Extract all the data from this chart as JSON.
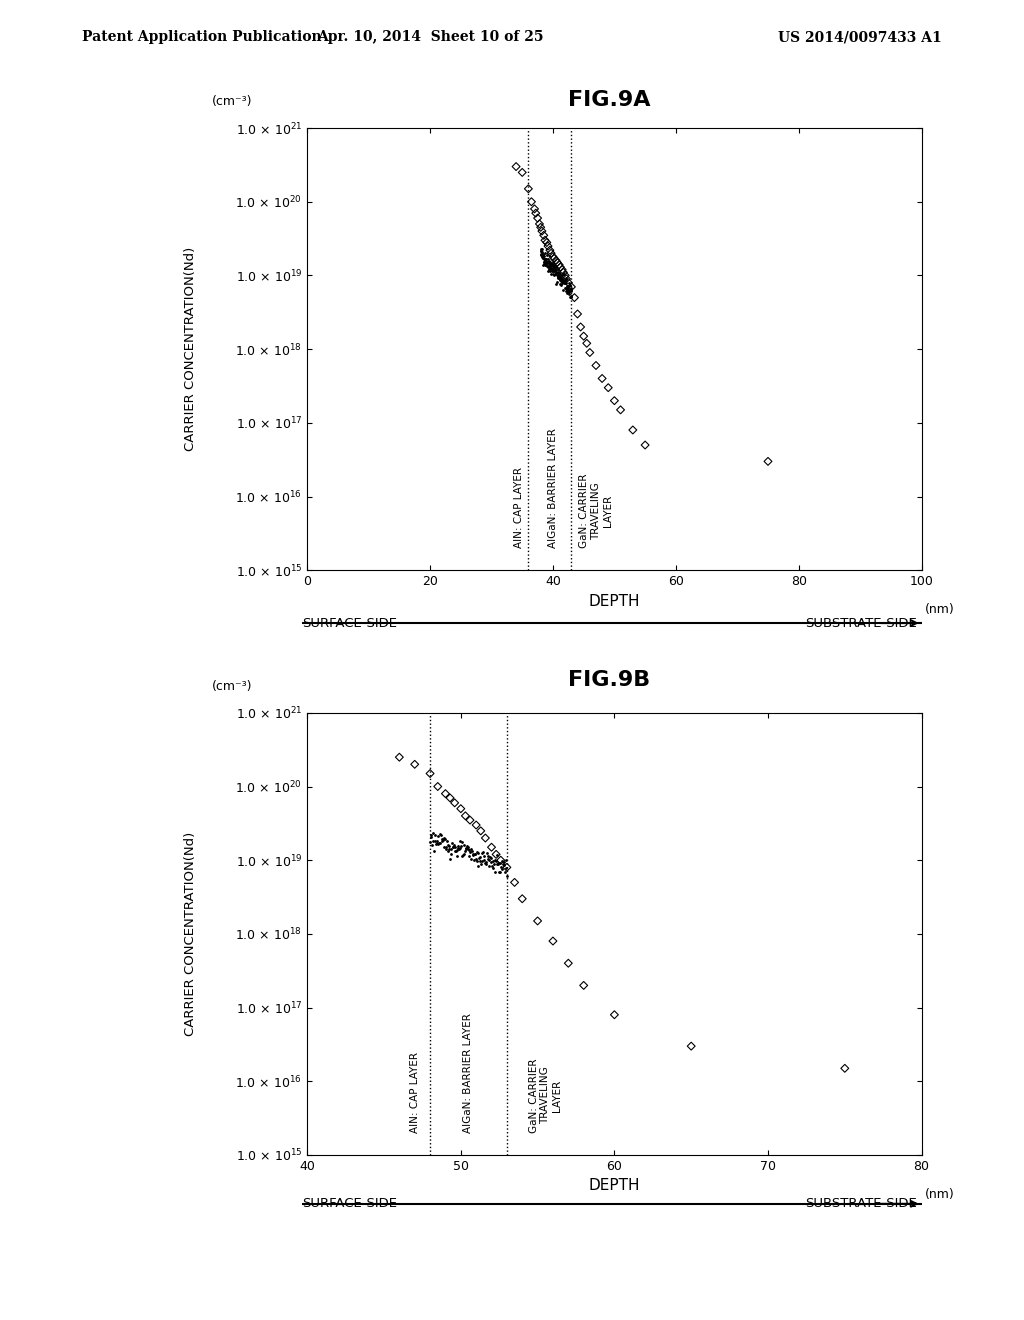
{
  "fig9a_title": "FIG.9A",
  "fig9b_title": "FIG.9B",
  "header_left": "Patent Application Publication",
  "header_mid": "Apr. 10, 2014  Sheet 10 of 25",
  "header_right": "US 2014/0097433 A1",
  "ylabel": "CARRIER CONCENTRATION(Nd)",
  "xlabel": "DEPTH",
  "yunit": "(cm⁻³)",
  "xunit": "(nm)",
  "fig9a": {
    "xlim": [
      0,
      100
    ],
    "xticks": [
      0,
      20,
      40,
      60,
      80,
      100
    ],
    "yticks_exp": [
      15,
      16,
      17,
      18,
      19,
      20,
      21
    ],
    "vline1_x": 36,
    "vline2_x": 43,
    "label1_text": "AlN: CAP LAYER",
    "label2_text": "AlGaN: BARRIER LAYER",
    "label3_text": "GaN: CARRIER\nTRAVELING\nLAYER",
    "scatter_x": [
      34,
      35,
      36,
      36.5,
      37,
      37.2,
      37.5,
      37.8,
      38,
      38.2,
      38.5,
      38.7,
      39,
      39.2,
      39.5,
      39.7,
      40,
      40.2,
      40.5,
      40.7,
      41,
      41.2,
      41.5,
      41.7,
      42,
      42.2,
      42.5,
      43,
      43.5,
      44,
      44.5,
      45,
      45.5,
      46,
      47,
      48,
      49,
      50,
      51,
      53,
      55,
      75
    ],
    "scatter_y": [
      3e+20,
      2.5e+20,
      1.5e+20,
      1e+20,
      8e+19,
      7e+19,
      6e+19,
      5e+19,
      4.5e+19,
      4e+19,
      3.5e+19,
      3e+19,
      2.8e+19,
      2.5e+19,
      2.2e+19,
      2e+19,
      1.8e+19,
      1.7e+19,
      1.6e+19,
      1.5e+19,
      1.4e+19,
      1.3e+19,
      1.2e+19,
      1.1e+19,
      1e+19,
      9e+18,
      8e+18,
      7e+18,
      5e+18,
      3e+18,
      2e+18,
      1.5e+18,
      1.2e+18,
      9e+17,
      6e+17,
      4e+17,
      3e+17,
      2e+17,
      1.5e+17,
      8e+16,
      5e+16,
      3e+16
    ],
    "dense_x_start": 38.0,
    "dense_x_end": 43.0,
    "surface_side_label": "SURFACE-SIDE",
    "substrate_side_label": "SUBSTRATE-SIDE"
  },
  "fig9b": {
    "xlim": [
      40,
      80
    ],
    "xticks": [
      40,
      50,
      60,
      70,
      80
    ],
    "yticks_exp": [
      15,
      16,
      17,
      18,
      19,
      20,
      21
    ],
    "vline1_x": 48,
    "vline2_x": 53,
    "label1_text": "AlN: CAP LAYER",
    "label2_text": "AlGaN: BARRIER LAYER",
    "label3_text": "GaN: CARRIER\nTRAVELING\nLAYER",
    "scatter_x": [
      46,
      47,
      48,
      48.5,
      49,
      49.3,
      49.6,
      50,
      50.3,
      50.6,
      51,
      51.3,
      51.6,
      52,
      52.3,
      52.6,
      53,
      53.5,
      54,
      55,
      56,
      57,
      58,
      60,
      65,
      75
    ],
    "scatter_y": [
      2.5e+20,
      2e+20,
      1.5e+20,
      1e+20,
      8e+19,
      7e+19,
      6e+19,
      5e+19,
      4e+19,
      3.5e+19,
      3e+19,
      2.5e+19,
      2e+19,
      1.5e+19,
      1.2e+19,
      1e+19,
      8e+18,
      5e+18,
      3e+18,
      1.5e+18,
      8e+17,
      4e+17,
      2e+17,
      8e+16,
      3e+16,
      1.5e+16
    ],
    "surface_side_label": "SURFACE-SIDE",
    "substrate_side_label": "SUBSTRATE-SIDE"
  },
  "background_color": "#ffffff",
  "text_color": "#000000"
}
